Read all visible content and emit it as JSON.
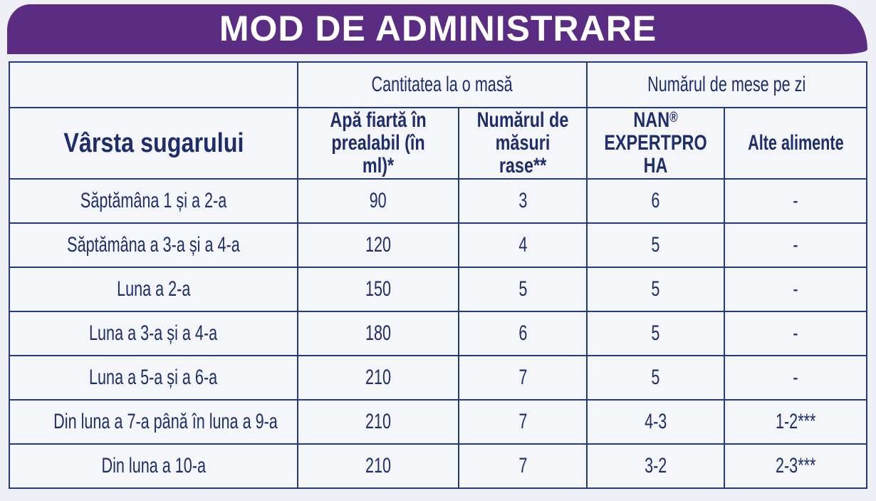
{
  "title": "MOD DE ADMINISTRARE",
  "header": {
    "group_quantity": "Cantitatea la o masă",
    "group_meals": "Numărul de mese pe zi",
    "age_col": "Vârsta sugarului",
    "water_col_line1": "Apă fiartă în",
    "water_col_line2": "prealabil (în ml)*",
    "scoops_col_line1": "Numărul de",
    "scoops_col_line2": "măsuri rase**",
    "nan_col_line1": "NAN",
    "nan_col_reg": "®",
    "nan_col_line2": "EXPERTPRO HA",
    "other_col": "Alte alimente"
  },
  "rows": [
    {
      "age": "Săptămâna 1 și a 2-a",
      "water": "90",
      "scoops": "3",
      "nan": "6",
      "other": "-"
    },
    {
      "age": "Săptămâna a 3-a și a 4-a",
      "water": "120",
      "scoops": "4",
      "nan": "5",
      "other": "-"
    },
    {
      "age": "Luna a 2-a",
      "water": "150",
      "scoops": "5",
      "nan": "5",
      "other": "-"
    },
    {
      "age": "Luna a 3-a și a 4-a",
      "water": "180",
      "scoops": "6",
      "nan": "5",
      "other": "-"
    },
    {
      "age": "Luna a 5-a și a 6-a",
      "water": "210",
      "scoops": "7",
      "nan": "5",
      "other": "-"
    },
    {
      "age": "Din luna a 7-a până în luna a 9-a",
      "water": "210",
      "scoops": "7",
      "nan": "4-3",
      "other": "1-2***"
    },
    {
      "age": "Din luna a 10-a",
      "water": "210",
      "scoops": "7",
      "nan": "3-2",
      "other": "2-3***"
    }
  ],
  "colors": {
    "banner": "#5b2d82",
    "text": "#1f2e6b",
    "border": "#243a7a"
  }
}
